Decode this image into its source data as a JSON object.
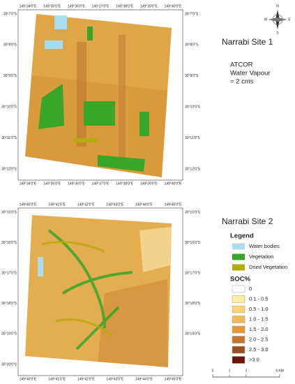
{
  "sites": [
    {
      "title": "Narrabi Site 1",
      "top_labels": [
        "149°34'0\"E",
        "149°35'0\"E",
        "149°36'0\"E",
        "149°37'0\"E",
        "149°38'0\"E",
        "149°39'0\"E",
        "149°40'0\"E"
      ],
      "bottom_labels": [
        "149°34'0\"E",
        "149°35'0\"E",
        "149°36'0\"E",
        "149°37'0\"E",
        "149°38'0\"E",
        "149°39'0\"E",
        "149°40'0\"E"
      ],
      "left_labels": [
        "30°7'0\"S",
        "30°8'0\"S",
        "30°9'0\"S",
        "30°10'0\"S",
        "30°11'0\"S",
        "30°12'0\"S"
      ],
      "right_labels": [
        "30°7'0\"S",
        "30°8'0\"S",
        "30°9'0\"S",
        "30°10'0\"S",
        "30°11'0\"S",
        "30°12'0\"S"
      ]
    },
    {
      "title": "Narrabi Site 2",
      "top_labels": [
        "149°40'0\"E",
        "149°41'0\"E",
        "149°42'0\"E",
        "149°43'0\"E",
        "149°44'0\"E",
        "149°45'0\"E"
      ],
      "bottom_labels": [
        "149°40'0\"E",
        "149°41'0\"E",
        "149°42'0\"E",
        "149°43'0\"E",
        "149°44'0\"E",
        "149°45'0\"E"
      ],
      "left_labels": [
        "30°15'0\"S",
        "30°16'0\"S",
        "30°17'0\"S",
        "30°18'0\"S",
        "30°19'0\"S",
        "30°20'0\"S"
      ],
      "right_labels": [
        "30°15'0\"S",
        "30°16'0\"S",
        "30°17'0\"S",
        "30°18'0\"S",
        "30°19'0\"S"
      ]
    }
  ],
  "site1_note": [
    "ATCOR",
    "Water Vapour",
    "= 2 cms"
  ],
  "compass": {
    "n": "N",
    "s": "S",
    "e": "E",
    "w": "W"
  },
  "legend": {
    "title": "Legend",
    "items": [
      {
        "label": "Water bodies",
        "color": "#a8dcef"
      },
      {
        "label": "Vegetation",
        "color": "#3aa629"
      },
      {
        "label": "Dried Vegetation",
        "color": "#b5aa10"
      }
    ],
    "soc_title": "SOC%",
    "soc_items": [
      {
        "label": "0",
        "color": "#ffffff"
      },
      {
        "label": "0.1 - 0.5",
        "color": "#fdeea0"
      },
      {
        "label": "0.5 - 1.0",
        "color": "#f8d474"
      },
      {
        "label": "1.0 - 1.5",
        "color": "#f0bb55"
      },
      {
        "label": "1.5 - 2.0",
        "color": "#e39a35"
      },
      {
        "label": "2.0 - 2.5",
        "color": "#c4772a"
      },
      {
        "label": "2.5 - 3.0",
        "color": "#9a5020"
      },
      {
        "label": ">3.0",
        "color": "#6a150c"
      }
    ]
  },
  "scale_bar": {
    "labels": [
      "0",
      "1",
      "2",
      "4 KM"
    ]
  }
}
